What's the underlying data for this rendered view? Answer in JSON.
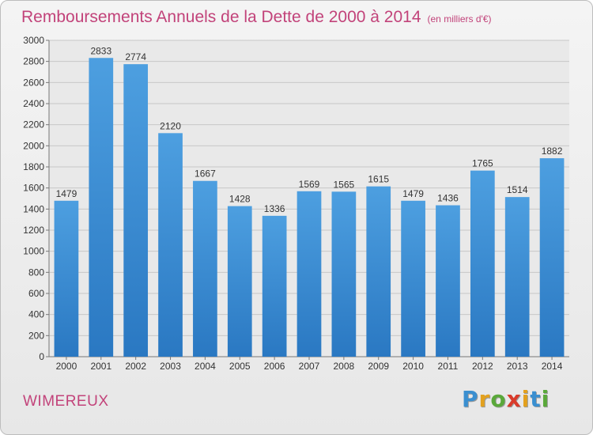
{
  "chart_data": {
    "type": "bar",
    "title": "Remboursements Annuels de la Dette de 2000 à 2014",
    "unit": "(en milliers d'€)",
    "categories": [
      "2000",
      "2001",
      "2002",
      "2003",
      "2004",
      "2005",
      "2006",
      "2007",
      "2008",
      "2009",
      "2010",
      "2011",
      "2012",
      "2013",
      "2014"
    ],
    "values": [
      1479,
      2833,
      2774,
      2120,
      1667,
      1428,
      1336,
      1569,
      1565,
      1615,
      1479,
      1436,
      1765,
      1514,
      1882
    ],
    "ylim": [
      0,
      3000
    ],
    "yticks": [
      0,
      200,
      400,
      600,
      800,
      1000,
      1200,
      1400,
      1600,
      1800,
      2000,
      2200,
      2400,
      2600,
      2800,
      3000
    ],
    "grid": true,
    "bar_color": "#4d9fe0",
    "bar_color_dark": "#2a78c2",
    "title_color": "#c2437a"
  },
  "commune": "WIMEREUX",
  "logo": {
    "letters": [
      "P",
      "r",
      "o",
      "x",
      "i",
      "t",
      "i"
    ],
    "colors": [
      "#3a8fd0",
      "#e3a11e",
      "#5aa83a",
      "#d93b2b",
      "#e3a11e",
      "#3a8fd0",
      "#5aa83a"
    ]
  }
}
